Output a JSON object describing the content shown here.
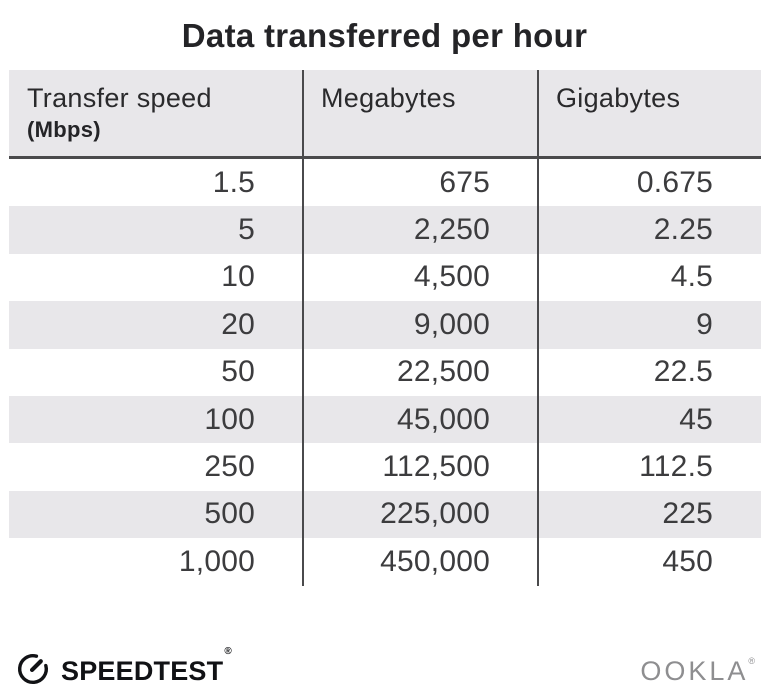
{
  "title": "Data transferred per hour",
  "chart_data": {
    "type": "table",
    "title": "Data transferred per hour",
    "columns": [
      "Transfer speed (Mbps)",
      "Megabytes",
      "Gigabytes"
    ],
    "rows": [
      [
        "1.5",
        "675",
        "0.675"
      ],
      [
        "5",
        "2,250",
        "2.25"
      ],
      [
        "10",
        "4,500",
        "4.5"
      ],
      [
        "20",
        "9,000",
        "9"
      ],
      [
        "50",
        "22,500",
        "22.5"
      ],
      [
        "100",
        "45,000",
        "45"
      ],
      [
        "250",
        "112,500",
        "112.5"
      ],
      [
        "500",
        "225,000",
        "225"
      ],
      [
        "1,000",
        "450,000",
        "450"
      ]
    ],
    "layout": {
      "stripe_rows": true,
      "first_row_background": "white",
      "value_alignment": "right"
    }
  },
  "table_header": {
    "col1_label": "Transfer speed",
    "col1_sublabel": "(Mbps)",
    "col2_label": "Megabytes",
    "col3_label": "Gigabytes"
  },
  "footer": {
    "speedtest_label": "SPEEDTEST",
    "speedtest_reg": "®",
    "ookla_label": "OOKLA",
    "ookla_reg": "®"
  },
  "icons": {
    "speedtest_gauge": "gauge-icon"
  },
  "colors": {
    "header_bg": "#e8e7ea",
    "row_alt_bg": "#e8e7ea",
    "divider": "#4a4a4c",
    "title_text": "#242427",
    "header_text": "#2a2a2c",
    "body_text": "#3c3c3e",
    "brand_black": "#111215",
    "ookla_gray": "#8e8e90"
  }
}
